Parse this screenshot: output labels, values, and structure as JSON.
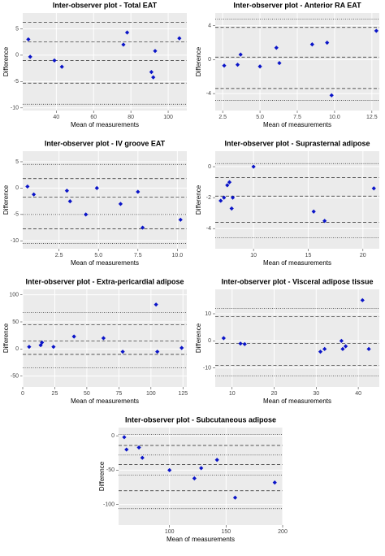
{
  "chart_data": [
    {
      "type": "scatter",
      "title": "Inter-observer plot - Total EAT",
      "xlabel": "Mean of measurements",
      "ylabel": "Difference",
      "color": "#0a14c8",
      "grid": true,
      "x": [
        25,
        26,
        39,
        43,
        76,
        78,
        91,
        92,
        93,
        106
      ],
      "values": [
        3,
        -0.3,
        -1,
        -2.2,
        2,
        4.3,
        -3.2,
        -4.2,
        0.8,
        3.2
      ],
      "xlim": [
        22,
        110
      ],
      "ylim": [
        -10.5,
        8
      ],
      "xticks": [
        40,
        60,
        80,
        100
      ],
      "yticks": [
        -10,
        -5,
        0,
        5
      ],
      "reference_lines": [
        6.2,
        2.5,
        -1,
        -5.3,
        -9.3
      ],
      "reference_styles": [
        "dashed",
        "dashed",
        "dashed",
        "dashed",
        "dotted"
      ]
    },
    {
      "type": "scatter",
      "title": "Inter-observer plot - Anterior RA EAT",
      "xlabel": "Mean of measurements",
      "ylabel": "Difference",
      "color": "#0a14c8",
      "grid": true,
      "x": [
        2.6,
        3.5,
        3.7,
        5,
        6.1,
        6.3,
        8.5,
        9.5,
        9.8,
        12.8
      ],
      "values": [
        -0.7,
        -0.6,
        0.6,
        -0.8,
        1.4,
        -0.4,
        1.8,
        2,
        -4.2,
        3.4
      ],
      "xlim": [
        2,
        13
      ],
      "ylim": [
        -6,
        5.5
      ],
      "xticks": [
        {
          "value": 2.5,
          "label": "2.5"
        },
        {
          "value": 5,
          "label": "5.0"
        },
        {
          "value": 7.5,
          "label": "7.5"
        },
        {
          "value": 10,
          "label": "10.0"
        },
        {
          "value": 12.5,
          "label": "12.5"
        }
      ],
      "yticks": [
        -4,
        0,
        4
      ],
      "reference_lines": [
        4.8,
        3.8,
        0.3,
        -3.4,
        -4.8
      ],
      "reference_styles": [
        "dotted",
        "dashed",
        "dashed",
        "dashed",
        "dotted"
      ]
    },
    {
      "type": "scatter",
      "title": "Inter-observer plot - IV groove EAT",
      "xlabel": "Mean of measurements",
      "ylabel": "Difference",
      "color": "#0a14c8",
      "grid": true,
      "x": [
        0.5,
        0.9,
        3,
        3.2,
        4.2,
        4.9,
        6.4,
        7.5,
        7.8,
        10.2
      ],
      "values": [
        0.3,
        -1.2,
        -0.5,
        -2.5,
        -5,
        0,
        -3,
        -0.7,
        -7.5,
        -6
      ],
      "xlim": [
        0.2,
        10.6
      ],
      "ylim": [
        -11.5,
        7
      ],
      "xticks": [
        {
          "value": 2.5,
          "label": "2.5"
        },
        {
          "value": 5,
          "label": "5.0"
        },
        {
          "value": 7.5,
          "label": "7.5"
        },
        {
          "value": 10,
          "label": "10.0"
        }
      ],
      "yticks": [
        -10,
        -5,
        0,
        5
      ],
      "reference_lines": [
        4.5,
        1.8,
        -1.7,
        -5,
        -7.7,
        -10.5
      ],
      "reference_styles": [
        "dotted",
        "dashed",
        "dashed",
        "dotted",
        "dashed",
        "dotted"
      ]
    },
    {
      "type": "scatter",
      "title": "Inter-observer plot - Suprasternal adipose",
      "xlabel": "Mean of measurements",
      "ylabel": "Difference",
      "color": "#0a14c8",
      "grid": true,
      "x": [
        7,
        7.3,
        7.6,
        7.8,
        8,
        8.1,
        10,
        15.5,
        16.5,
        21
      ],
      "values": [
        -2.2,
        -2,
        -1.2,
        -1,
        -2.7,
        -2,
        0,
        -2.9,
        -3.5,
        -1.4
      ],
      "xlim": [
        6.5,
        21.5
      ],
      "ylim": [
        -5.3,
        1
      ],
      "xticks": [
        10,
        15,
        20
      ],
      "yticks": [
        -4,
        -2,
        0
      ],
      "reference_lines": [
        0.2,
        -0.7,
        -1.9,
        -3.6,
        -4.6
      ],
      "reference_styles": [
        "dotted",
        "dashed",
        "dashed",
        "dashed",
        "dotted"
      ]
    },
    {
      "type": "scatter",
      "title": "Inter-observer plot - Extra-pericardial adipose",
      "xlabel": "Mean of measurements",
      "ylabel": "Difference",
      "color": "#0a14c8",
      "grid": true,
      "x": [
        5,
        14,
        15,
        24,
        40,
        63,
        78,
        104,
        105,
        124
      ],
      "values": [
        4,
        7,
        12,
        4,
        23,
        20,
        -5,
        82,
        -5,
        2
      ],
      "xlim": [
        0,
        128
      ],
      "ylim": [
        -70,
        110
      ],
      "xticks": [
        0,
        25,
        50,
        75,
        100,
        125
      ],
      "yticks": [
        -50,
        0,
        50,
        100
      ],
      "reference_lines": [
        67,
        45,
        15,
        -10,
        -35
      ],
      "reference_styles": [
        "dotted",
        "dashed",
        "dashed",
        "dashed",
        "dotted"
      ]
    },
    {
      "type": "scatter",
      "title": "Inter-observer plot - Visceral adipose tissue",
      "xlabel": "Mean of measurements",
      "ylabel": "Difference",
      "color": "#0a14c8",
      "grid": true,
      "x": [
        8,
        12,
        13,
        31,
        32,
        36,
        36.3,
        37,
        41,
        42.5
      ],
      "values": [
        1,
        -1,
        -1.2,
        -4,
        -3,
        0,
        -3,
        -2,
        15,
        -3
      ],
      "xlim": [
        6,
        45
      ],
      "ylim": [
        -17,
        19
      ],
      "xticks": [
        10,
        20,
        30,
        40
      ],
      "yticks": [
        -10,
        0,
        10
      ],
      "reference_lines": [
        12,
        9,
        -1,
        -9,
        -13
      ],
      "reference_styles": [
        "dotted",
        "dashed",
        "dashed",
        "dashed",
        "dotted"
      ]
    },
    {
      "type": "scatter",
      "title": "Inter-observer plot - Subcutaneous adipose",
      "xlabel": "Mean of measurements",
      "ylabel": "Difference",
      "color": "#0a14c8",
      "grid": true,
      "x": [
        60,
        62,
        73,
        76,
        100,
        122,
        128,
        142,
        158,
        193
      ],
      "values": [
        -2,
        -20,
        -17,
        -32,
        -50,
        -62,
        -47,
        -35,
        -90,
        -68
      ],
      "xlim": [
        55,
        200
      ],
      "ylim": [
        -130,
        12
      ],
      "xticks": [
        100,
        150,
        200
      ],
      "yticks": [
        -100,
        -50,
        0
      ],
      "reference_lines": [
        2,
        -14,
        -28,
        -42,
        -57,
        -80,
        -106
      ],
      "reference_styles": [
        "dotted",
        "dashed",
        "dotted",
        "dashed",
        "dotted",
        "dashed",
        "dotted"
      ]
    }
  ]
}
